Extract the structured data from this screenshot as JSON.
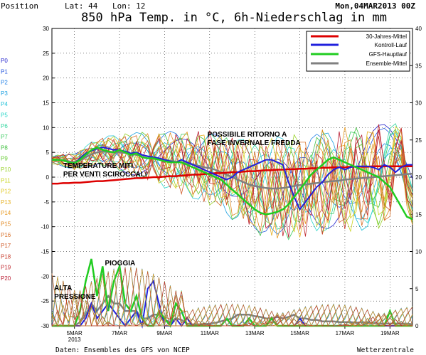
{
  "header": {
    "position": "Position",
    "lat": "Lat: 44",
    "lon": "Lon: 12",
    "date": "Mon,04MAR2013 00Z",
    "title": "850 hPa Temp. in °C, 6h-Niederschlag in mm"
  },
  "footer": {
    "source": "Daten: Ensembles des GFS von NCEP",
    "brand": "Wetterzentrale"
  },
  "member_labels": [
    "P0",
    "P1",
    "P2",
    "P3",
    "P4",
    "P5",
    "P6",
    "P7",
    "P8",
    "P9",
    "P10",
    "P11",
    "P12",
    "P13",
    "P14",
    "P15",
    "P16",
    "P17",
    "P18",
    "P19",
    "P20"
  ],
  "colors": {
    "members": [
      "#2222cc",
      "#2255dd",
      "#1e7ee6",
      "#1aa0e0",
      "#20c0d8",
      "#2ad6c8",
      "#33d6a0",
      "#3acc60",
      "#40c040",
      "#66cc33",
      "#99d22a",
      "#c8d420",
      "#e0c820",
      "#e6b020",
      "#e89a20",
      "#e08820",
      "#d87028",
      "#d05a28",
      "#c84030",
      "#c02a30",
      "#b81a30"
    ],
    "clim": "#dd0000",
    "control": "#2020dd",
    "gfs": "#20cc20",
    "ensemble": "#808080"
  },
  "chart_data": {
    "type": "line",
    "left_axis": {
      "min": -30,
      "max": 30,
      "ticks": [
        -30,
        -25,
        -20,
        -15,
        -10,
        -5,
        0,
        5,
        10,
        15,
        20,
        25,
        30
      ]
    },
    "right_axis": {
      "min": 0,
      "max": 40,
      "ticks": [
        0,
        5,
        10,
        15,
        20,
        25,
        30,
        35,
        40
      ]
    },
    "x_axis": {
      "range": [
        0,
        16
      ],
      "ticks": [
        {
          "pos": 1,
          "label": "5MAR",
          "sub": "2013"
        },
        {
          "pos": 3,
          "label": "7MAR",
          "sub": ""
        },
        {
          "pos": 5,
          "label": "9MAR",
          "sub": ""
        },
        {
          "pos": 7,
          "label": "11MAR",
          "sub": ""
        },
        {
          "pos": 9,
          "label": "13MAR",
          "sub": ""
        },
        {
          "pos": 11,
          "label": "15MAR",
          "sub": ""
        },
        {
          "pos": 13,
          "label": "17MAR",
          "sub": ""
        },
        {
          "pos": 15,
          "label": "19MAR",
          "sub": ""
        }
      ]
    },
    "legend": [
      {
        "key": "clim",
        "label": "30-Jahres-Mittel"
      },
      {
        "key": "control",
        "label": "Kontroll-Lauf"
      },
      {
        "key": "gfs",
        "label": "GFS-Hauptlauf"
      },
      {
        "key": "ensemble",
        "label": "Ensemble-Mittel"
      }
    ],
    "annotations": [
      {
        "lines": [
          "POSSIBILE RITORNO A",
          "FASE INVERNALE FREDDA"
        ],
        "x": 6.9,
        "y": 8.2
      },
      {
        "lines": [
          "TEMPERATURE MITI",
          "PER VENTI SCIROCCALI"
        ],
        "x": 0.5,
        "y": 1.9
      },
      {
        "lines": [
          "PIOGGIA"
        ],
        "x": 2.35,
        "y": -17.8
      },
      {
        "lines": [
          "ALTA",
          "PRESSIONE"
        ],
        "x": 0.1,
        "y": -22.8
      }
    ],
    "x": [
      0,
      0.25,
      0.5,
      0.75,
      1,
      1.25,
      1.5,
      1.75,
      2,
      2.25,
      2.5,
      2.75,
      3,
      3.25,
      3.5,
      3.75,
      4,
      4.25,
      4.5,
      4.75,
      5,
      5.25,
      5.5,
      5.75,
      6,
      6.25,
      6.5,
      6.75,
      7,
      7.25,
      7.5,
      7.75,
      8,
      8.25,
      8.5,
      8.75,
      9,
      9.25,
      9.5,
      9.75,
      10,
      10.25,
      10.5,
      10.75,
      11,
      11.25,
      11.5,
      11.75,
      12,
      12.25,
      12.5,
      12.75,
      13,
      13.25,
      13.5,
      13.75,
      14,
      14.25,
      14.5,
      14.75,
      15,
      15.25,
      15.5,
      15.75,
      16
    ],
    "temperature": {
      "clim": [
        -1.3,
        -1.3,
        -1.2,
        -1.2,
        -1.1,
        -1.1,
        -1.0,
        -0.9,
        -0.8,
        -0.8,
        -0.7,
        -0.6,
        -0.5,
        -0.4,
        -0.3,
        -0.2,
        -0.2,
        -0.1,
        0.0,
        0.0,
        0.1,
        0.2,
        0.2,
        0.3,
        0.4,
        0.5,
        0.5,
        0.6,
        0.7,
        0.8,
        0.8,
        0.9,
        1.0,
        1.0,
        1.1,
        1.2,
        1.2,
        1.3,
        1.4,
        1.4,
        1.5,
        1.5,
        1.6,
        1.6,
        1.7,
        1.7,
        1.8,
        1.8,
        1.9,
        1.9,
        2.0,
        2.0,
        2.0,
        2.1,
        2.1,
        2.1,
        2.1,
        2.2,
        2.2,
        2.2,
        2.2,
        2.2,
        2.2,
        2.2,
        2.2
      ],
      "control": [
        3.5,
        3.5,
        3.4,
        3.0,
        2.8,
        3.8,
        4.8,
        5.3,
        5.8,
        6.0,
        5.8,
        5.5,
        5.5,
        5.2,
        4.8,
        5.0,
        4.5,
        4.2,
        4.0,
        3.8,
        3.5,
        3.2,
        3.0,
        3.5,
        3.0,
        2.5,
        2.0,
        1.5,
        1.0,
        0.5,
        0.0,
        -0.5,
        0.0,
        1.0,
        1.5,
        2.0,
        2.5,
        3.0,
        3.5,
        3.5,
        3.0,
        2.5,
        -1.0,
        -4.0,
        -6.5,
        -5.0,
        -3.5,
        -2.0,
        -1.0,
        0.5,
        1.5,
        2.0,
        1.5,
        2.0,
        2.2,
        2.2,
        2.2,
        2.0,
        1.5,
        2.5,
        2.0,
        1.0,
        2.0,
        2.5,
        2.5
      ],
      "gfs": [
        3.5,
        3.5,
        3.4,
        3.0,
        2.8,
        3.5,
        4.5,
        5.5,
        6.0,
        5.5,
        5.2,
        5.0,
        5.5,
        5.0,
        4.5,
        4.8,
        4.0,
        3.8,
        3.8,
        3.5,
        3.2,
        3.0,
        3.0,
        3.0,
        2.5,
        2.0,
        1.5,
        1.0,
        0.5,
        0.0,
        -0.5,
        -1.5,
        -2.5,
        -3.5,
        -4.5,
        -5.5,
        -6.5,
        -7.2,
        -7.5,
        -7.3,
        -7.0,
        -6.5,
        -5.5,
        -4.0,
        -2.5,
        -1.0,
        0.5,
        1.5,
        2.5,
        3.5,
        4.0,
        3.5,
        3.0,
        2.5,
        2.0,
        1.5,
        1.0,
        0.5,
        0.0,
        -1.0,
        -2.0,
        -4.0,
        -6.0,
        -8.0,
        -8.5
      ],
      "ensemble": [
        3.5,
        3.5,
        3.4,
        3.2,
        3.0,
        3.4,
        4.0,
        4.6,
        5.0,
        5.2,
        5.1,
        5.0,
        5.0,
        4.9,
        4.7,
        4.5,
        4.4,
        4.2,
        4.0,
        3.8,
        3.5,
        3.3,
        3.1,
        3.0,
        2.8,
        2.6,
        2.3,
        2.0,
        1.8,
        1.5,
        1.0,
        0.5,
        0.0,
        -0.5,
        -1.0,
        -1.5,
        -1.8,
        -2.0,
        -2.2,
        -2.3,
        -2.3,
        -2.2,
        -2.0,
        -1.8,
        -1.6,
        -1.5,
        -1.3,
        -1.2,
        -1.0,
        -0.9,
        -0.8,
        -0.7,
        -0.5,
        -0.4,
        -0.3,
        -0.2,
        -0.1,
        0.0,
        0.1,
        0.2,
        0.3,
        0.4,
        0.5,
        0.6,
        0.7
      ]
    },
    "precipitation_mm": {
      "gfs": [
        0,
        0,
        0,
        0,
        0,
        2,
        6,
        9,
        4,
        8,
        2,
        6,
        8,
        3,
        2,
        4,
        1,
        0,
        0,
        2,
        1,
        0,
        3,
        2,
        0,
        0,
        0,
        0,
        0,
        0,
        0,
        1,
        0,
        0,
        0,
        1,
        0,
        0,
        0,
        1,
        0,
        0,
        0,
        0,
        0,
        0,
        0,
        0,
        0,
        0,
        0,
        0,
        0,
        0,
        0,
        0,
        0,
        0,
        0,
        0,
        2,
        0,
        0,
        0,
        0
      ],
      "control": [
        0,
        0,
        0,
        0,
        0,
        0,
        1,
        3,
        1,
        2,
        3,
        2,
        1,
        0,
        1,
        2,
        0,
        5,
        6,
        3,
        0,
        0,
        1,
        0,
        1,
        0,
        0,
        0,
        0,
        0,
        0,
        1,
        0,
        0,
        0,
        1,
        0,
        0,
        0,
        1,
        0,
        0,
        0,
        0,
        1,
        0,
        0,
        0,
        0,
        0,
        0,
        0,
        0,
        0,
        0,
        0,
        0,
        0,
        0,
        0,
        0,
        0,
        0,
        0,
        0
      ],
      "ensemble": [
        0,
        0,
        0,
        0,
        0,
        0.5,
        1.5,
        3,
        2,
        3,
        4,
        3,
        3,
        2,
        2,
        2,
        1,
        1,
        1.5,
        1.5,
        0.8,
        0.5,
        1,
        0.8,
        0.3,
        0.2,
        0.2,
        0.2,
        0.3,
        0.4,
        0.6,
        0.8,
        1,
        1.5,
        1.5,
        1.5,
        1.3,
        1.2,
        1,
        1,
        1.2,
        1,
        1.2,
        1.5,
        1,
        1,
        0.8,
        0.8,
        0.6,
        0.6,
        0.6,
        0.5,
        0.5,
        0.5,
        0.4,
        0.5,
        0.4,
        0.4,
        0.3,
        0.3,
        0.3,
        0.3,
        0.3,
        0.3,
        0.2
      ]
    }
  }
}
